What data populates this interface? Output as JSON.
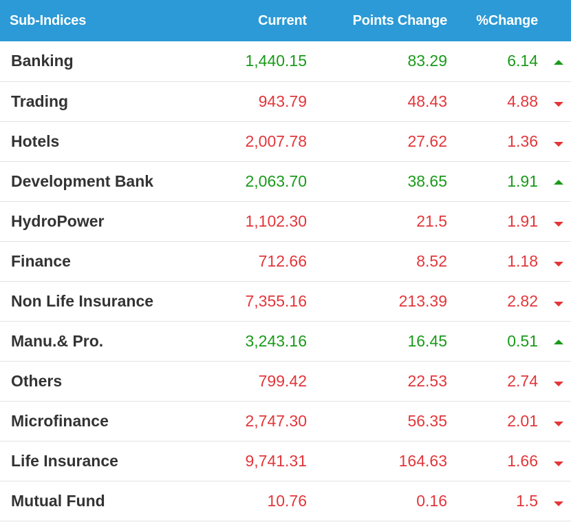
{
  "table": {
    "headers": {
      "name": "Sub-Indices",
      "current": "Current",
      "points_change": "Points Change",
      "percent_change": "%Change"
    },
    "colors": {
      "header_bg": "#2b9ad6",
      "up": "#1a9a1a",
      "down": "#e2363a"
    },
    "rows": [
      {
        "name": "Banking",
        "current": "1,440.15",
        "points_change": "83.29",
        "percent_change": "6.14",
        "direction": "up",
        "icon": "triangle-up-icon"
      },
      {
        "name": "Trading",
        "current": "943.79",
        "points_change": "48.43",
        "percent_change": "4.88",
        "direction": "down",
        "icon": "triangle-down-icon"
      },
      {
        "name": "Hotels",
        "current": "2,007.78",
        "points_change": "27.62",
        "percent_change": "1.36",
        "direction": "down",
        "icon": "triangle-down-icon"
      },
      {
        "name": "Development Bank",
        "current": "2,063.70",
        "points_change": "38.65",
        "percent_change": "1.91",
        "direction": "up",
        "icon": "triangle-up-icon"
      },
      {
        "name": "HydroPower",
        "current": "1,102.30",
        "points_change": "21.5",
        "percent_change": "1.91",
        "direction": "down",
        "icon": "triangle-down-icon"
      },
      {
        "name": "Finance",
        "current": "712.66",
        "points_change": "8.52",
        "percent_change": "1.18",
        "direction": "down",
        "icon": "triangle-down-icon"
      },
      {
        "name": "Non Life Insurance",
        "current": "7,355.16",
        "points_change": "213.39",
        "percent_change": "2.82",
        "direction": "down",
        "icon": "triangle-down-icon"
      },
      {
        "name": "Manu.& Pro.",
        "current": "3,243.16",
        "points_change": "16.45",
        "percent_change": "0.51",
        "direction": "up",
        "icon": "triangle-up-icon"
      },
      {
        "name": "Others",
        "current": "799.42",
        "points_change": "22.53",
        "percent_change": "2.74",
        "direction": "down",
        "icon": "triangle-down-icon"
      },
      {
        "name": "Microfinance",
        "current": "2,747.30",
        "points_change": "56.35",
        "percent_change": "2.01",
        "direction": "down",
        "icon": "triangle-down-icon"
      },
      {
        "name": "Life Insurance",
        "current": "9,741.31",
        "points_change": "164.63",
        "percent_change": "1.66",
        "direction": "down",
        "icon": "triangle-down-icon"
      },
      {
        "name": "Mutual Fund",
        "current": "10.76",
        "points_change": "0.16",
        "percent_change": "1.5",
        "direction": "down",
        "icon": "triangle-down-icon"
      }
    ]
  }
}
